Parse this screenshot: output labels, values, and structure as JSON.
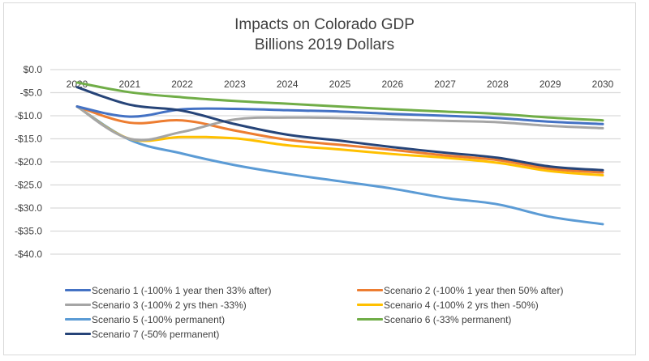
{
  "chart_data": {
    "type": "line",
    "title": "Impacts on Colorado GDP",
    "subtitle": "Billions 2019 Dollars",
    "xlabel": "",
    "ylabel": "",
    "x": [
      "2020",
      "2021",
      "2022",
      "2023",
      "2024",
      "2025",
      "2026",
      "2027",
      "2028",
      "2029",
      "2030"
    ],
    "ylim": [
      -40,
      0
    ],
    "yticks": [
      0,
      -5,
      -10,
      -15,
      -20,
      -25,
      -30,
      -35,
      -40
    ],
    "ytick_labels": [
      "$0.0",
      "-$5.0",
      "-$10.0",
      "-$15.0",
      "-$20.0",
      "-$25.0",
      "-$30.0",
      "-$35.0",
      "-$40.0"
    ],
    "x_axis_position": "top (at y = 0, labels just below the $0.0 line)",
    "grid": true,
    "legend_position": "bottom",
    "series": [
      {
        "name": "Scenario 1 (-100% 1 year then 33% after)",
        "color": "#4472C4",
        "values": [
          -8.0,
          -10.2,
          -8.6,
          -8.5,
          -8.8,
          -9.1,
          -9.6,
          -10.0,
          -10.5,
          -11.3,
          -11.8
        ]
      },
      {
        "name": "Scenario 2 (-100% 1 year then 50% after)",
        "color": "#ED7D31",
        "values": [
          -8.0,
          -11.5,
          -11.0,
          -13.2,
          -15.2,
          -16.3,
          -17.4,
          -18.6,
          -19.6,
          -21.5,
          -22.3
        ]
      },
      {
        "name": "Scenario 3 (-100% 2 yrs then -33%)",
        "color": "#A5A5A5",
        "values": [
          -8.0,
          -15.0,
          -13.5,
          -10.8,
          -10.4,
          -10.5,
          -10.8,
          -11.1,
          -11.4,
          -12.2,
          -12.7
        ]
      },
      {
        "name": "Scenario 4 (-100% 2 yrs then -50%)",
        "color": "#FFC000",
        "values": [
          -8.0,
          -15.0,
          -14.6,
          -14.9,
          -16.4,
          -17.3,
          -18.3,
          -19.1,
          -20.2,
          -22.0,
          -22.9
        ]
      },
      {
        "name": "Scenario 5 (-100% permanent)",
        "color": "#5B9BD5",
        "values": [
          -8.0,
          -15.2,
          -18.2,
          -20.7,
          -22.6,
          -24.2,
          -25.8,
          -27.8,
          -29.2,
          -31.9,
          -33.5
        ]
      },
      {
        "name": "Scenario 6 (-33% permanent)",
        "color": "#70AD47",
        "values": [
          -2.8,
          -4.9,
          -6.0,
          -6.8,
          -7.4,
          -8.0,
          -8.6,
          -9.1,
          -9.6,
          -10.4,
          -11.0
        ]
      },
      {
        "name": "Scenario 7 (-50% permanent)",
        "color": "#264478",
        "values": [
          -3.8,
          -7.6,
          -8.9,
          -11.8,
          -14.1,
          -15.4,
          -16.8,
          -18.0,
          -19.1,
          -21.0,
          -21.8
        ]
      }
    ]
  }
}
